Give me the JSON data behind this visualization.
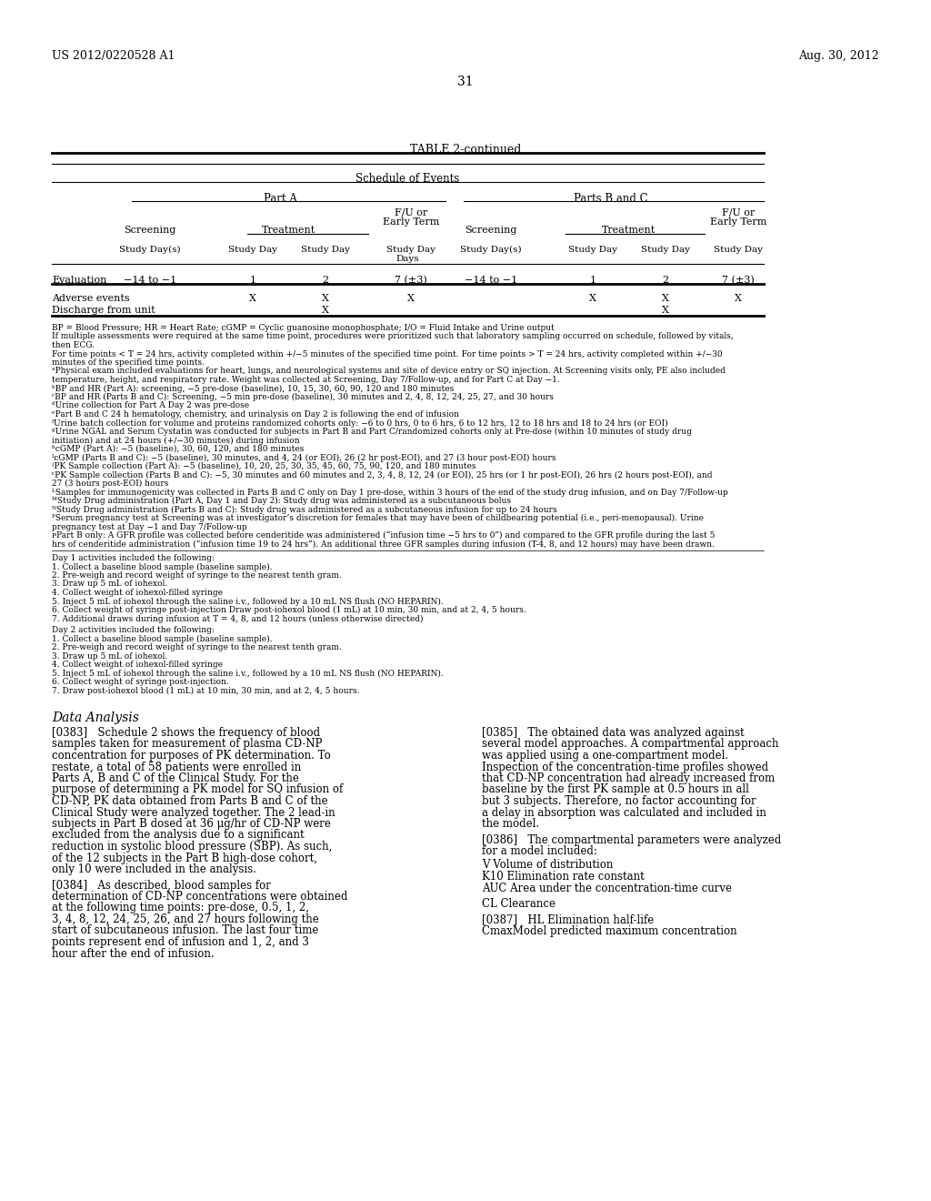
{
  "patent_number": "US 2012/0220528 A1",
  "patent_date": "Aug. 30, 2012",
  "page_number": "31",
  "table_title": "TABLE 2-continued",
  "schedule_title": "Schedule of Events",
  "part_a_title": "Part A",
  "part_bc_title": "Parts B and C",
  "screening_label": "Screening",
  "treatment_label": "Treatment",
  "fu_label1": "F/U or",
  "fu_label2": "Early Term",
  "study_days_label": "Days",
  "evaluation_label": "Evaluation",
  "adverse_events": "Adverse events",
  "discharge": "Discharge from unit",
  "footnotes": [
    "BP = Blood Pressure; HR = Heart Rate; cGMP = Cyclic guanosine monophosphate; I/O = Fluid Intake and Urine output",
    "If multiple assessments were required at the same time point, procedures were prioritized such that laboratory sampling occurred on schedule, followed by vitals, then ECG.",
    "For time points < T = 24 hrs, activity completed within +/−5 minutes of the specified time point. For time points > T = 24 hrs, activity completed within +/−30 minutes of the specified time points.",
    "ᵃPhysical exam included evaluations for heart, lungs, and neurological systems and site of device entry or SQ injection. At Screening visits only, PE also included temperature, height, and respiratory rate. Weight was collected at Screening, Day 7/Follow-up, and for Part C at Day −1.",
    "ᵇBP and HR (Part A): screening, −5 pre-dose (baseline), 10, 15, 30, 60, 90, 120 and 180 minutes",
    "ᶜBP and HR (Parts B and C): Screening, −5 min pre-dose (baseline), 30 minutes and 2, 4, 8, 12, 24, 25, 27, and 30 hours",
    "ᵈUrine collection for Part A Day 2 was pre-dose",
    "ᵉPart B and C 24 h hematology, chemistry, and urinalysis on Day 2 is following the end of infusion",
    "ᶠUrine batch collection for volume and proteins randomized cohorts only: −6 to 0 hrs, 0 to 6 hrs, 6 to 12 hrs, 12 to 18 hrs and 18 to 24 hrs (or EOI)",
    "ᵍUrine NGAL and Serum Cystatin was conducted for subjects in Part B and Part C/randomized cohorts only at Pre-dose (within 10 minutes of study drug initiation) and at 24 hours (+/−30 minutes) during infusion",
    "ʰcGMP (Part A): −5 (baseline), 30, 60, 120, and 180 minutes",
    "ᴵcGMP (Parts B and C): −5 (baseline), 30 minutes, and 4, 24 (or EOI), 26 (2 hr post-EOI), and 27 (3 hour post-EOI) hours",
    "ʲPK Sample collection (Part A): −5 (baseline), 10, 20, 25, 30, 35, 45, 60, 75, 90, 120, and 180 minutes",
    "ᵋPK Sample collection (Parts B and C): −5, 30 minutes and 60 minutes and 2, 3, 4, 8, 12, 24 (or EOI), 25 hrs (or 1 hr post-EOI), 26 hrs (2 hours post-EOI), and 27 (3 hours post-EOI) hours",
    "ᴸSamples for immunogenicity was collected in Parts B and C only on Day 1 pre-dose, within 3 hours of the end of the study drug infusion, and on Day 7/Follow-up",
    "ᴹStudy Drug administration (Part A, Day 1 and Day 2): Study drug was administered as a subcutaneous bolus",
    "ᴺStudy Drug administration (Parts B and C): Study drug was administered as a subcutaneous infusion for up to 24 hours",
    "ᴾSerum pregnancy test at Screening was at investigator’s discretion for females that may have been of childbearing potential (i.e., peri-menopausal). Urine pregnancy test at Day −1 and Day 7/Follow-up",
    "ᴘPart B only: A GFR profile was collected before cenderitide was administered (“infusion time −5 hrs to 0”) and compared to the GFR profile during the last 5 hrs of cenderitide administration (“infusion time 19 to 24 hrs”). An additional three GFR samples during infusion (T-4, 8, and 12 hours) may have been drawn."
  ],
  "day1_header": "Day 1 activities included the following:",
  "day1_activities": [
    "1. Collect a baseline blood sample (baseline sample).",
    "2. Pre-weigh and record weight of syringe to the nearest tenth gram.",
    "3. Draw up 5 mL of iohexol.",
    "4. Collect weight of iohexol-filled syringe",
    "5. Inject 5 mL of iohexol through the saline i.v., followed by a 10 mL NS flush (NO HEPARIN).",
    "6. Collect weight of syringe post-injection Draw post-iohexol blood (1 mL) at 10 min, 30 min, and at 2, 4, 5 hours.",
    "7. Additional draws during infusion at T = 4, 8, and 12 hours (unless otherwise directed)"
  ],
  "day2_header": "Day 2 activities included the following:",
  "day2_activities": [
    "1. Collect a baseline blood sample (baseline sample).",
    "2. Pre-weigh and record weight of syringe to the nearest tenth gram.",
    "3. Draw up 5 mL of iohexol.",
    "4. Collect weight of iohexol-filled syringe",
    "5. Inject 5 mL of iohexol through the saline i.v., followed by a 10 mL NS flush (NO HEPARIN).",
    "6. Collect weight of syringe post-injection.",
    "7. Draw post-iohexol blood (1 mL) at 10 min, 30 min, and at 2, 4, 5 hours."
  ],
  "section_title": "Data Analysis",
  "para0383": "[0383]   Schedule 2 shows the frequency of blood samples taken for measurement of plasma CD-NP concentration for purposes of PK determination. To restate, a total of 58 patients were enrolled in Parts A, B and C of the Clinical Study. For the purpose of determining a PK model for SQ infusion of CD-NP, PK data obtained from Parts B and C of the Clinical Study were analyzed together. The 2 lead-in subjects in Part B dosed at 36 μg/hr of CD-NP were excluded from the analysis due to a significant reduction in systolic blood pressure (SBP). As such, of the 12 subjects in the Part B high-dose cohort, only 10 were included in the analysis.",
  "para0384": "[0384]   As described, blood samples for determination of CD-NP concentrations were obtained at the following time points: pre-dose, 0.5, 1, 2, 3, 4, 8, 12, 24, 25, 26, and 27 hours following the start of subcutaneous infusion. The last four time points represent end of infusion and 1, 2, and 3 hour after the end of infusion.",
  "para0385": "[0385]   The obtained data was analyzed against several model approaches. A compartmental approach was applied using a one-compartment model. Inspection of the concentration-time profiles showed that CD-NP concentration had already increased from baseline by the first PK sample at 0.5 hours in all but 3 subjects. Therefore, no factor accounting for a delay in absorption was calculated and included in the model.",
  "para0386": "[0386]   The compartmental parameters were analyzed for a model included:",
  "param1": "V Volume of distribution",
  "param2": "K10 Elimination rate constant",
  "param3": "AUC Area under the concentration-time curve",
  "param4": "CL Clearance",
  "para0387_line1": "[0387]   HL Elimination half-life",
  "para0387_line2": "CmaxModel predicted maximum concentration"
}
